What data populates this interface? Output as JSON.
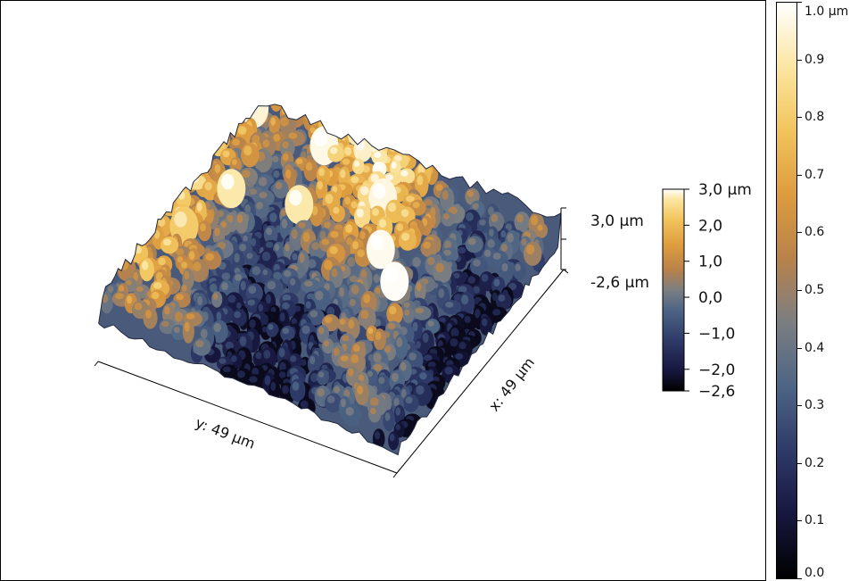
{
  "axis_labels": {
    "x": "x: 49 µm",
    "y": "y: 49 µm"
  },
  "z_axis": {
    "top": "3,0 µm",
    "bottom": "-2,6 µm"
  },
  "inner_scale": {
    "labels": [
      "3,0 µm",
      "2,0",
      "1,0",
      "0,0",
      "−1,0",
      "−2,0",
      "−2,6"
    ],
    "values": [
      3.0,
      2.0,
      1.0,
      0.0,
      -1.0,
      -2.0,
      -2.6
    ],
    "min": -2.6,
    "max": 3.0
  },
  "outer_scale": {
    "labels": [
      "1.0 µm",
      "0.9",
      "0.8",
      "0.7",
      "0.6",
      "0.5",
      "0.4",
      "0.3",
      "0.2",
      "0.1",
      "0.0"
    ],
    "values": [
      1.0,
      0.9,
      0.8,
      0.7,
      0.6,
      0.5,
      0.4,
      0.3,
      0.2,
      0.1,
      0.0
    ],
    "min": 0.0,
    "max": 1.0
  },
  "colors": {
    "frame": "#000000",
    "colormap": [
      "#000000",
      "#17173f",
      "#2e3a68",
      "#4d6585",
      "#7b7e82",
      "#b8824a",
      "#dd9c3e",
      "#f2c45c",
      "#fbe6a2",
      "#ffffff"
    ]
  }
}
